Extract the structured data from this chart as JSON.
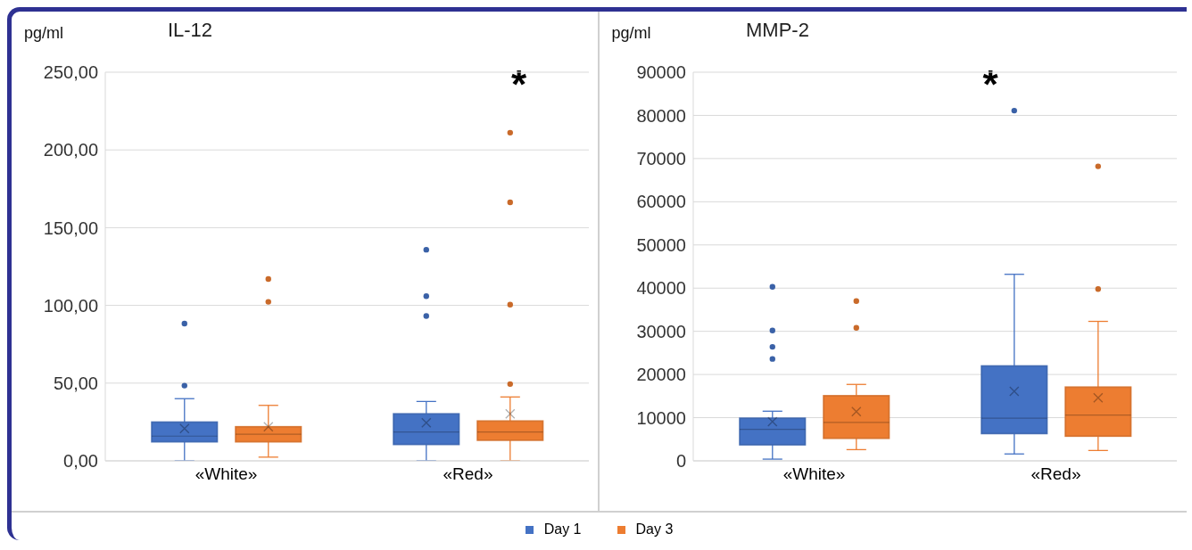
{
  "chart_data": [
    {
      "type": "box",
      "title": "IL-12",
      "ylabel": "pg/ml",
      "categories": [
        "«White»",
        "«Red»"
      ],
      "ylim": [
        0,
        250
      ],
      "yticks": [
        {
          "value": 0,
          "label": "0,00"
        },
        {
          "value": 50,
          "label": "50,00"
        },
        {
          "value": 100,
          "label": "100,00"
        },
        {
          "value": 150,
          "label": "150,00"
        },
        {
          "value": 200,
          "label": "200,00"
        },
        {
          "value": 250,
          "label": "250,00"
        }
      ],
      "grid": "y",
      "legend": "bottom",
      "annotations": [
        "*"
      ],
      "series": [
        {
          "name": "Day 1",
          "color": "#4472c4",
          "boxes": [
            {
              "low": 0,
              "q1": 12.2,
              "median": 15.9,
              "q3": 25,
              "high": 40,
              "mean": 20.8,
              "outliers": [
                48.4,
                88.3
              ]
            },
            {
              "low": 0,
              "q1": 10.5,
              "median": 18.6,
              "q3": 30.3,
              "high": 38.2,
              "mean": 24.5,
              "outliers": [
                93.2,
                105.9,
                135.8
              ]
            }
          ]
        },
        {
          "name": "Day 3",
          "color": "#ed7d31",
          "boxes": [
            {
              "low": 2.4,
              "q1": 12.2,
              "median": 17.1,
              "q3": 22,
              "high": 35.7,
              "mean": 22,
              "outliers": [
                102.3,
                117
              ]
            },
            {
              "low": 0,
              "q1": 13.2,
              "median": 18.6,
              "q3": 25.7,
              "high": 41.1,
              "mean": 30.3,
              "outliers": [
                49.4,
                100.5,
                166.3,
                211.1
              ]
            }
          ]
        }
      ]
    },
    {
      "type": "box",
      "title": "MMP-2",
      "ylabel": "pg/ml",
      "categories": [
        "«White»",
        "«Red»"
      ],
      "ylim": [
        0,
        90000
      ],
      "yticks": [
        0,
        10000,
        20000,
        30000,
        40000,
        50000,
        60000,
        70000,
        80000,
        90000
      ],
      "grid": "y",
      "annotations": [
        "*"
      ],
      "series": [
        {
          "color": "#4472c4",
          "boxes": [
            {
              "low": 400,
              "q1": 3700,
              "median": 7300,
              "q3": 9900,
              "high": 11500,
              "mean": 9100,
              "outliers": [
                23600,
                26400,
                30200,
                40300
              ]
            },
            {
              "low": 1600,
              "q1": 6300,
              "median": 9900,
              "q3": 22000,
              "high": 43200,
              "mean": 16100,
              "outliers": [
                81100
              ]
            }
          ]
        },
        {
          "color": "#ed7d31",
          "boxes": [
            {
              "low": 2600,
              "q1": 5200,
              "median": 8900,
              "q3": 15100,
              "high": 17700,
              "mean": 11400,
              "outliers": [
                30800,
                37000
              ]
            },
            {
              "low": 2400,
              "q1": 5700,
              "median": 10600,
              "q3": 17100,
              "high": 32300,
              "mean": 14600,
              "outliers": [
                39800,
                68200
              ]
            }
          ]
        }
      ]
    }
  ]
}
